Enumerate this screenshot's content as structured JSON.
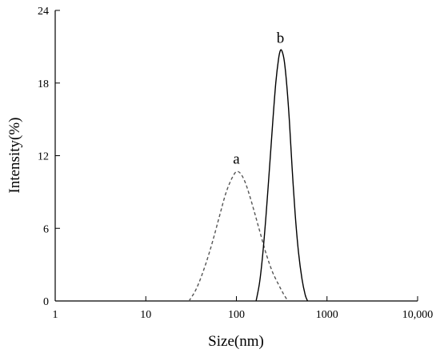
{
  "chart_data": {
    "type": "line",
    "xlabel": "Size(nm)",
    "ylabel": "Intensity(%)",
    "xscale": "log",
    "xlim": [
      1,
      10000
    ],
    "ylim": [
      0,
      24
    ],
    "x_ticks": [
      1,
      10,
      100,
      1000,
      10000
    ],
    "x_tick_labels": [
      "1",
      "10",
      "100",
      "1000",
      "10,000"
    ],
    "y_ticks": [
      0,
      6,
      12,
      18,
      24
    ],
    "y_tick_labels": [
      "0",
      "6",
      "12",
      "18",
      "24"
    ],
    "grid": false,
    "legend": "none",
    "series": [
      {
        "label": "a",
        "style": "dashed",
        "color": "#555555",
        "points": [
          [
            30,
            0
          ],
          [
            35,
            0.8
          ],
          [
            40,
            1.8
          ],
          [
            47,
            3.3
          ],
          [
            55,
            5.0
          ],
          [
            65,
            7.0
          ],
          [
            75,
            8.7
          ],
          [
            85,
            9.8
          ],
          [
            95,
            10.5
          ],
          [
            102,
            10.7
          ],
          [
            112,
            10.5
          ],
          [
            125,
            9.8
          ],
          [
            140,
            8.7
          ],
          [
            160,
            7.2
          ],
          [
            185,
            5.5
          ],
          [
            215,
            3.8
          ],
          [
            250,
            2.4
          ],
          [
            290,
            1.4
          ],
          [
            330,
            0.6
          ],
          [
            370,
            0
          ]
        ]
      },
      {
        "label": "b",
        "style": "solid",
        "color": "#000000",
        "points": [
          [
            165,
            0
          ],
          [
            180,
            1.5
          ],
          [
            195,
            3.8
          ],
          [
            212,
            7.0
          ],
          [
            232,
            11.0
          ],
          [
            252,
            14.8
          ],
          [
            272,
            18.0
          ],
          [
            292,
            20.0
          ],
          [
            306,
            20.7
          ],
          [
            320,
            20.6
          ],
          [
            338,
            19.8
          ],
          [
            360,
            17.8
          ],
          [
            385,
            14.8
          ],
          [
            412,
            11.0
          ],
          [
            445,
            7.2
          ],
          [
            485,
            4.0
          ],
          [
            530,
            1.8
          ],
          [
            575,
            0.5
          ],
          [
            610,
            0
          ]
        ]
      }
    ],
    "annotations": [
      {
        "text": "a",
        "x": 100,
        "y": 11.2
      },
      {
        "text": "b",
        "x": 306,
        "y": 21.2
      }
    ]
  }
}
